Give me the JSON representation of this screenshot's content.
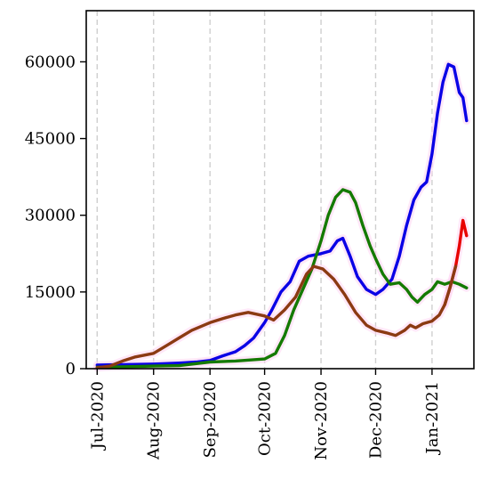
{
  "chart_data": {
    "type": "line",
    "title": "",
    "xlabel": "",
    "ylabel": "",
    "x_tick_labels": [
      "Jul-2020",
      "Aug-2020",
      "Sep-2020",
      "Oct-2020",
      "Nov-2020",
      "Dec-2020",
      "Jan-2021"
    ],
    "x_tick_dates": [
      "2020-07-01",
      "2020-08-01",
      "2020-09-01",
      "2020-10-01",
      "2020-11-01",
      "2020-12-01",
      "2021-01-01"
    ],
    "x_range": [
      "2020-06-25",
      "2021-01-24"
    ],
    "y_ticks": [
      0,
      15000,
      30000,
      45000,
      60000
    ],
    "y_tick_labels": [
      "0",
      "15000",
      "30000",
      "45000",
      "60000"
    ],
    "ylim": [
      0,
      70000
    ],
    "grid": "vertical dashed at x ticks",
    "legend": "none",
    "series": [
      {
        "color": "#0a00e6",
        "points": [
          [
            "2020-07-01",
            700
          ],
          [
            "2020-07-15",
            800
          ],
          [
            "2020-08-01",
            900
          ],
          [
            "2020-08-15",
            1100
          ],
          [
            "2020-08-25",
            1300
          ],
          [
            "2020-09-01",
            1600
          ],
          [
            "2020-09-08",
            2500
          ],
          [
            "2020-09-15",
            3300
          ],
          [
            "2020-09-20",
            4500
          ],
          [
            "2020-09-25",
            6000
          ],
          [
            "2020-10-01",
            9000
          ],
          [
            "2020-10-05",
            11500
          ],
          [
            "2020-10-10",
            15000
          ],
          [
            "2020-10-15",
            17000
          ],
          [
            "2020-10-20",
            21000
          ],
          [
            "2020-10-25",
            22000
          ],
          [
            "2020-11-01",
            22500
          ],
          [
            "2020-11-06",
            23000
          ],
          [
            "2020-11-10",
            25000
          ],
          [
            "2020-11-13",
            25500
          ],
          [
            "2020-11-17",
            22000
          ],
          [
            "2020-11-21",
            18000
          ],
          [
            "2020-11-26",
            15500
          ],
          [
            "2020-12-01",
            14500
          ],
          [
            "2020-12-05",
            15500
          ],
          [
            "2020-12-10",
            17500
          ],
          [
            "2020-12-14",
            22000
          ],
          [
            "2020-12-18",
            28000
          ],
          [
            "2020-12-22",
            33000
          ],
          [
            "2020-12-26",
            35500
          ],
          [
            "2020-12-29",
            36500
          ],
          [
            "2021-01-01",
            42000
          ],
          [
            "2021-01-04",
            50000
          ],
          [
            "2021-01-07",
            56000
          ],
          [
            "2021-01-10",
            59500
          ],
          [
            "2021-01-13",
            59000
          ],
          [
            "2021-01-16",
            54000
          ],
          [
            "2021-01-18",
            53000
          ],
          [
            "2021-01-20",
            48500
          ]
        ]
      },
      {
        "color": "#147a00",
        "points": [
          [
            "2020-07-01",
            300
          ],
          [
            "2020-07-20",
            400
          ],
          [
            "2020-08-01",
            500
          ],
          [
            "2020-08-15",
            600
          ],
          [
            "2020-09-01",
            1300
          ],
          [
            "2020-09-15",
            1500
          ],
          [
            "2020-10-01",
            1900
          ],
          [
            "2020-10-07",
            3000
          ],
          [
            "2020-10-12",
            6500
          ],
          [
            "2020-10-17",
            11500
          ],
          [
            "2020-10-22",
            15500
          ],
          [
            "2020-10-27",
            19500
          ],
          [
            "2020-11-01",
            25000
          ],
          [
            "2020-11-05",
            30000
          ],
          [
            "2020-11-09",
            33500
          ],
          [
            "2020-11-13",
            35000
          ],
          [
            "2020-11-17",
            34500
          ],
          [
            "2020-11-20",
            32500
          ],
          [
            "2020-11-24",
            28000
          ],
          [
            "2020-11-28",
            24000
          ],
          [
            "2020-12-01",
            21500
          ],
          [
            "2020-12-05",
            18500
          ],
          [
            "2020-12-09",
            16500
          ],
          [
            "2020-12-14",
            16800
          ],
          [
            "2020-12-18",
            15500
          ],
          [
            "2020-12-21",
            14000
          ],
          [
            "2020-12-24",
            13000
          ],
          [
            "2020-12-28",
            14500
          ],
          [
            "2021-01-01",
            15500
          ],
          [
            "2021-01-04",
            17000
          ],
          [
            "2021-01-08",
            16500
          ],
          [
            "2021-01-12",
            17000
          ],
          [
            "2021-01-16",
            16500
          ],
          [
            "2021-01-20",
            15800
          ]
        ]
      },
      {
        "color": "#e80000",
        "points": [
          [
            "2021-01-08",
            12500
          ],
          [
            "2021-01-11",
            16000
          ],
          [
            "2021-01-14",
            20000
          ],
          [
            "2021-01-16",
            24000
          ],
          [
            "2021-01-18",
            29000
          ],
          [
            "2021-01-20",
            26000
          ]
        ]
      },
      {
        "color": "#8b3a12",
        "points": [
          [
            "2020-07-01",
            200
          ],
          [
            "2020-07-08",
            500
          ],
          [
            "2020-07-15",
            1500
          ],
          [
            "2020-07-22",
            2300
          ],
          [
            "2020-08-01",
            3000
          ],
          [
            "2020-08-08",
            4500
          ],
          [
            "2020-08-15",
            6000
          ],
          [
            "2020-08-22",
            7500
          ],
          [
            "2020-09-01",
            9000
          ],
          [
            "2020-09-08",
            9800
          ],
          [
            "2020-09-15",
            10500
          ],
          [
            "2020-09-22",
            11000
          ],
          [
            "2020-10-01",
            10300
          ],
          [
            "2020-10-06",
            9500
          ],
          [
            "2020-10-12",
            11500
          ],
          [
            "2020-10-18",
            14000
          ],
          [
            "2020-10-24",
            18500
          ],
          [
            "2020-10-28",
            20000
          ],
          [
            "2020-11-02",
            19500
          ],
          [
            "2020-11-08",
            17500
          ],
          [
            "2020-11-14",
            14500
          ],
          [
            "2020-11-20",
            11000
          ],
          [
            "2020-11-26",
            8500
          ],
          [
            "2020-12-01",
            7500
          ],
          [
            "2020-12-07",
            7000
          ],
          [
            "2020-12-12",
            6500
          ],
          [
            "2020-12-17",
            7500
          ],
          [
            "2020-12-20",
            8500
          ],
          [
            "2020-12-23",
            8000
          ],
          [
            "2020-12-27",
            8800
          ],
          [
            "2021-01-01",
            9300
          ],
          [
            "2021-01-05",
            10500
          ],
          [
            "2021-01-08",
            12500
          ],
          [
            "2021-01-11",
            16000
          ],
          [
            "2021-01-14",
            20000
          ]
        ]
      }
    ]
  }
}
